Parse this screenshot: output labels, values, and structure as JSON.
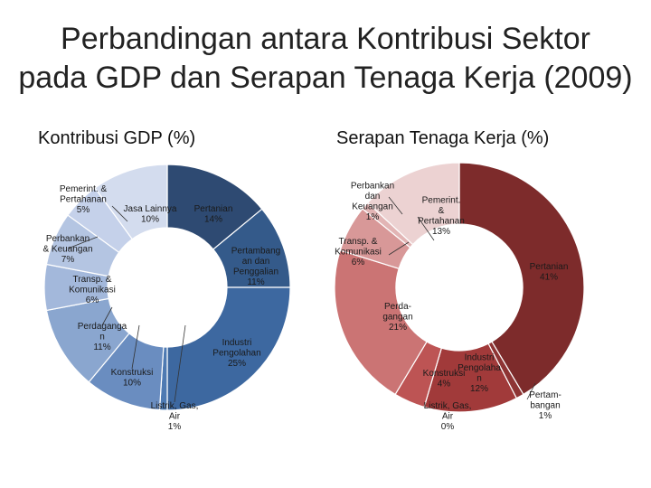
{
  "title_line1": "Perbandingan antara Kontribusi Sektor",
  "title_line2": "pada GDP dan Serapan Tenaga Kerja (2009)",
  "chart_data": [
    {
      "type": "pie",
      "title": "Kontribusi GDP (%)",
      "categories": [
        "Pertanian",
        "Pertambangan dan Penggalian",
        "Industri Pengolahan",
        "Listrik, Gas, Air",
        "Konstruksi",
        "Perdagangan",
        "Transp. & Komunikasi",
        "Perbankan & Keuangan",
        "Pemerint. & Pertahanan",
        "Jasa Lainnya"
      ],
      "values": [
        14,
        11,
        25,
        1,
        10,
        11,
        6,
        7,
        5,
        10
      ],
      "labels": [
        [
          "Pertanian",
          "14%"
        ],
        [
          "Pertambang",
          "an dan",
          "Penggalian",
          "11%"
        ],
        [
          "Industri",
          "Pengolahan",
          "25%"
        ],
        [
          "Listrik, Gas,",
          "Air",
          "1%"
        ],
        [
          "Konstruksi",
          "10%"
        ],
        [
          "Perdaganga",
          "n",
          "11%"
        ],
        [
          "Transp. &",
          "Komunikasi",
          "6%"
        ],
        [
          "Perbankan",
          "& Keuangan",
          "7%"
        ],
        [
          "Pemerint. &",
          "Pertahanan",
          "5%"
        ],
        [
          "Jasa Lainnya",
          "10%"
        ]
      ],
      "colors": [
        "#2e4a72",
        "#345a8a",
        "#3d68a0",
        "#4e7ab2",
        "#6a8dc0",
        "#8aa6cf",
        "#a3b8db",
        "#b4c5e2",
        "#c5d1ea",
        "#d3dcee"
      ]
    },
    {
      "type": "pie",
      "title": "Serapan Tenaga Kerja (%)",
      "categories": [
        "Pertanian",
        "Pertambangan",
        "Industri Pengolahan",
        "Listrik, Gas, Air",
        "Konstruksi",
        "Perdagangan",
        "Transp. & Komunikasi",
        "Perbankan dan Keuangan",
        "Pemerint. & Pertahanan"
      ],
      "values": [
        41,
        1,
        12,
        0,
        4,
        21,
        6,
        1,
        13
      ],
      "labels": [
        [
          "Pertanian",
          "41%"
        ],
        [
          "Pertam-",
          "bangan",
          "1%"
        ],
        [
          "Industri",
          "Pengolaha",
          "n",
          "12%"
        ],
        [
          "Listrik, Gas,",
          "Air",
          "0%"
        ],
        [
          "Konstruksi",
          "4%"
        ],
        [
          "Perda-",
          "gangan",
          "21%"
        ],
        [
          "Transp. &",
          "Komunikasi",
          "6%"
        ],
        [
          "Perbankan",
          "dan",
          "Keuangan",
          "1%"
        ],
        [
          "Pemerint.",
          "&",
          "Pertahanan",
          "13%"
        ]
      ],
      "colors": [
        "#7d2b2b",
        "#8e3434",
        "#a13a3a",
        "#b24646",
        "#bd5454",
        "#cb7474",
        "#d89898",
        "#e2b5b5",
        "#ecd2d2"
      ]
    }
  ]
}
